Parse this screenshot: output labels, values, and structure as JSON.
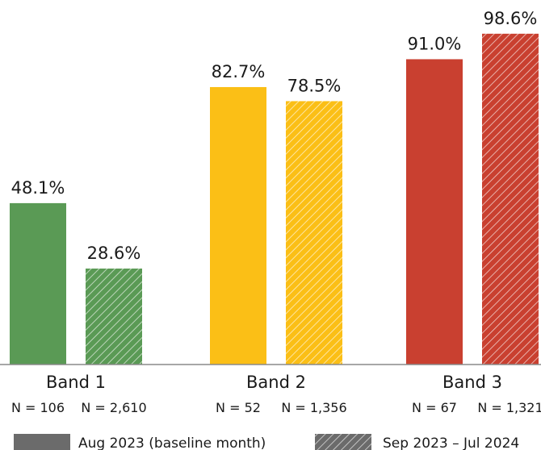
{
  "chart_data": {
    "type": "bar",
    "categories": [
      "Band 1",
      "Band 2",
      "Band 3"
    ],
    "series": [
      {
        "name": "Aug 2023 (baseline month)",
        "values": [
          48.1,
          82.7,
          91.0
        ],
        "value_labels": [
          "48.1%",
          "82.7%",
          "91.0%"
        ],
        "sample_sizes": [
          "N = 106",
          "N = 52",
          "N = 67"
        ],
        "pattern": "solid"
      },
      {
        "name": "Sep 2023 – Jul 2024",
        "values": [
          28.6,
          78.5,
          98.6
        ],
        "value_labels": [
          "28.6%",
          "78.5%",
          "98.6%"
        ],
        "sample_sizes": [
          "N = 2,610",
          "N = 1,356",
          "N = 1,321"
        ],
        "pattern": "hatched"
      }
    ],
    "category_colors": [
      "#5a9a55",
      "#fbbf16",
      "#c94030"
    ],
    "legend_swatch_color": "#6b6b6b",
    "ylim": [
      0,
      100
    ],
    "grid": false,
    "legend_position": "bottom"
  }
}
